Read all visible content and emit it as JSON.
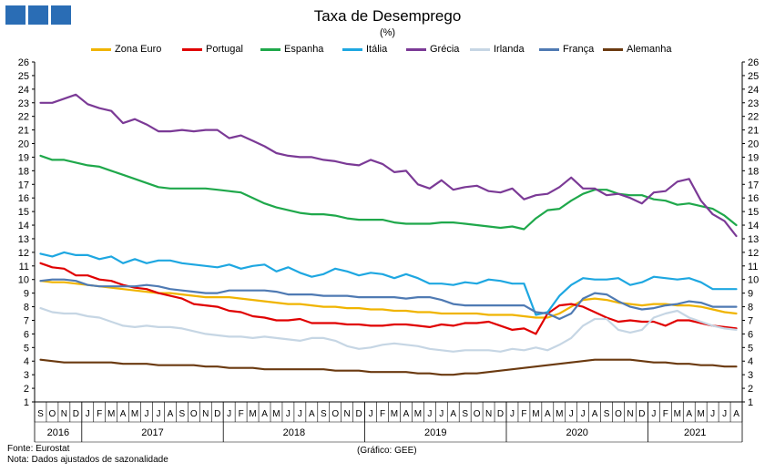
{
  "header": {
    "title": "Taxa de Desemprego",
    "subtitle": "(%)"
  },
  "logo": {
    "colors": [
      "#2a6db5",
      "#2a6db5",
      "#2a6db5"
    ]
  },
  "footer": {
    "source": "Fonte: Eurostat",
    "note": "Nota: Dados ajustados de sazonalidade",
    "credit": "(Gráfico: GEE)"
  },
  "chart_data": {
    "type": "line",
    "title": "Taxa de Desemprego",
    "subtitle": "(%)",
    "ylim": [
      1,
      26
    ],
    "yticks": [
      1,
      2,
      3,
      4,
      5,
      6,
      7,
      8,
      9,
      10,
      11,
      12,
      13,
      14,
      15,
      16,
      17,
      18,
      19,
      20,
      21,
      22,
      23,
      24,
      25,
      26
    ],
    "y_axis_both_sides": true,
    "grid": false,
    "legend_position": "top",
    "x": [
      "S",
      "O",
      "N",
      "D",
      "J",
      "F",
      "M",
      "A",
      "M",
      "J",
      "J",
      "A",
      "S",
      "O",
      "N",
      "D",
      "J",
      "F",
      "M",
      "A",
      "M",
      "J",
      "J",
      "A",
      "S",
      "O",
      "N",
      "D",
      "J",
      "F",
      "M",
      "A",
      "M",
      "J",
      "J",
      "A",
      "S",
      "O",
      "N",
      "D",
      "J",
      "F",
      "M",
      "A",
      "M",
      "J",
      "J",
      "A",
      "S",
      "O",
      "N",
      "D",
      "J",
      "F",
      "M",
      "A",
      "M",
      "J",
      "J",
      "A"
    ],
    "years": [
      {
        "label": "2016",
        "start": 0,
        "end": 3
      },
      {
        "label": "2017",
        "start": 4,
        "end": 15
      },
      {
        "label": "2018",
        "start": 16,
        "end": 27
      },
      {
        "label": "2019",
        "start": 28,
        "end": 39
      },
      {
        "label": "2020",
        "start": 40,
        "end": 51
      },
      {
        "label": "2021",
        "start": 52,
        "end": 59
      }
    ],
    "series": [
      {
        "name": "Zona Euro",
        "color": "#f0b400",
        "values": [
          9.9,
          9.8,
          9.8,
          9.7,
          9.6,
          9.5,
          9.4,
          9.3,
          9.2,
          9.1,
          9.0,
          9.0,
          8.9,
          8.8,
          8.7,
          8.7,
          8.7,
          8.6,
          8.5,
          8.4,
          8.3,
          8.2,
          8.2,
          8.1,
          8.0,
          8.0,
          7.9,
          7.9,
          7.8,
          7.8,
          7.7,
          7.7,
          7.6,
          7.6,
          7.5,
          7.5,
          7.5,
          7.5,
          7.4,
          7.4,
          7.4,
          7.3,
          7.2,
          7.2,
          7.5,
          8.0,
          8.5,
          8.6,
          8.5,
          8.3,
          8.2,
          8.1,
          8.2,
          8.2,
          8.1,
          8.1,
          8.0,
          7.8,
          7.6,
          7.5
        ]
      },
      {
        "name": "Portugal",
        "color": "#e00000",
        "values": [
          11.2,
          10.9,
          10.8,
          10.3,
          10.3,
          10.0,
          9.9,
          9.6,
          9.4,
          9.3,
          9.0,
          8.8,
          8.6,
          8.2,
          8.1,
          8.0,
          7.7,
          7.6,
          7.3,
          7.2,
          7.0,
          7.0,
          7.1,
          6.8,
          6.8,
          6.8,
          6.7,
          6.7,
          6.6,
          6.6,
          6.7,
          6.7,
          6.6,
          6.5,
          6.7,
          6.6,
          6.8,
          6.8,
          6.9,
          6.6,
          6.3,
          6.4,
          6.0,
          7.5,
          8.1,
          8.2,
          8.0,
          7.6,
          7.2,
          6.9,
          7.0,
          6.9,
          6.9,
          6.6,
          7.0,
          7.0,
          6.8,
          6.6,
          6.5,
          6.4
        ]
      },
      {
        "name": "Espanha",
        "color": "#1fa84b",
        "values": [
          19.1,
          18.8,
          18.8,
          18.6,
          18.4,
          18.3,
          18.0,
          17.7,
          17.4,
          17.1,
          16.8,
          16.7,
          16.7,
          16.7,
          16.7,
          16.6,
          16.5,
          16.4,
          16.0,
          15.6,
          15.3,
          15.1,
          14.9,
          14.8,
          14.8,
          14.7,
          14.5,
          14.4,
          14.4,
          14.4,
          14.2,
          14.1,
          14.1,
          14.1,
          14.2,
          14.2,
          14.1,
          14.0,
          13.9,
          13.8,
          13.9,
          13.7,
          14.5,
          15.1,
          15.2,
          15.8,
          16.3,
          16.6,
          16.6,
          16.3,
          16.2,
          16.2,
          15.9,
          15.8,
          15.5,
          15.6,
          15.4,
          15.2,
          14.7,
          14.0
        ]
      },
      {
        "name": "Itália",
        "color": "#1ea7e1",
        "values": [
          11.9,
          11.7,
          12.0,
          11.8,
          11.8,
          11.5,
          11.7,
          11.2,
          11.5,
          11.2,
          11.4,
          11.4,
          11.2,
          11.1,
          11.0,
          10.9,
          11.1,
          10.8,
          11.0,
          11.1,
          10.6,
          10.9,
          10.5,
          10.2,
          10.4,
          10.8,
          10.6,
          10.3,
          10.5,
          10.4,
          10.1,
          10.4,
          10.1,
          9.7,
          9.7,
          9.6,
          9.8,
          9.7,
          10.0,
          9.9,
          9.7,
          9.7,
          7.4,
          7.6,
          8.8,
          9.6,
          10.1,
          10.0,
          10.0,
          10.1,
          9.6,
          9.8,
          10.2,
          10.1,
          10.0,
          10.1,
          9.8,
          9.3,
          9.3,
          9.3
        ]
      },
      {
        "name": "Grécia",
        "color": "#7b3a96",
        "values": [
          23.0,
          23.0,
          23.3,
          23.6,
          22.9,
          22.6,
          22.4,
          21.5,
          21.8,
          21.4,
          20.9,
          20.9,
          21.0,
          20.9,
          21.0,
          21.0,
          20.4,
          20.6,
          20.2,
          19.8,
          19.3,
          19.1,
          19.0,
          19.0,
          18.8,
          18.7,
          18.5,
          18.4,
          18.8,
          18.5,
          17.9,
          18.0,
          17.0,
          16.7,
          17.3,
          16.6,
          16.8,
          16.9,
          16.5,
          16.4,
          16.7,
          15.9,
          16.2,
          16.3,
          16.8,
          17.5,
          16.7,
          16.7,
          16.2,
          16.3,
          16.0,
          15.6,
          16.4,
          16.5,
          17.2,
          17.4,
          15.8,
          14.8,
          14.3,
          13.2
        ]
      },
      {
        "name": "Irlanda",
        "color": "#c6d6e4",
        "values": [
          7.9,
          7.6,
          7.5,
          7.5,
          7.3,
          7.2,
          6.9,
          6.6,
          6.5,
          6.6,
          6.5,
          6.5,
          6.4,
          6.2,
          6.0,
          5.9,
          5.8,
          5.8,
          5.7,
          5.8,
          5.7,
          5.6,
          5.5,
          5.7,
          5.7,
          5.5,
          5.1,
          4.9,
          5.0,
          5.2,
          5.3,
          5.2,
          5.1,
          4.9,
          4.8,
          4.7,
          4.8,
          4.8,
          4.8,
          4.7,
          4.9,
          4.8,
          5.0,
          4.8,
          5.2,
          5.7,
          6.6,
          7.1,
          7.1,
          6.3,
          6.1,
          6.3,
          7.2,
          7.5,
          7.7,
          7.2,
          6.9,
          6.6,
          6.4,
          6.3
        ]
      },
      {
        "name": "França",
        "color": "#4f7ab3",
        "values": [
          9.9,
          10.0,
          10.0,
          9.9,
          9.6,
          9.5,
          9.5,
          9.5,
          9.5,
          9.6,
          9.5,
          9.3,
          9.2,
          9.1,
          9.0,
          9.0,
          9.2,
          9.2,
          9.2,
          9.2,
          9.1,
          8.9,
          8.9,
          8.9,
          8.8,
          8.8,
          8.8,
          8.7,
          8.7,
          8.7,
          8.7,
          8.6,
          8.7,
          8.7,
          8.5,
          8.2,
          8.1,
          8.1,
          8.1,
          8.1,
          8.1,
          8.1,
          7.6,
          7.5,
          7.1,
          7.5,
          8.6,
          9.0,
          8.9,
          8.4,
          8.0,
          7.8,
          7.9,
          8.1,
          8.2,
          8.4,
          8.3,
          8.0,
          8.0,
          8.0
        ]
      },
      {
        "name": "Alemanha",
        "color": "#6b3a10",
        "values": [
          4.1,
          4.0,
          3.9,
          3.9,
          3.9,
          3.9,
          3.9,
          3.8,
          3.8,
          3.8,
          3.7,
          3.7,
          3.7,
          3.7,
          3.6,
          3.6,
          3.5,
          3.5,
          3.5,
          3.4,
          3.4,
          3.4,
          3.4,
          3.4,
          3.4,
          3.3,
          3.3,
          3.3,
          3.2,
          3.2,
          3.2,
          3.2,
          3.1,
          3.1,
          3.0,
          3.0,
          3.1,
          3.1,
          3.2,
          3.3,
          3.4,
          3.5,
          3.6,
          3.7,
          3.8,
          3.9,
          4.0,
          4.1,
          4.1,
          4.1,
          4.1,
          4.0,
          3.9,
          3.9,
          3.8,
          3.8,
          3.7,
          3.7,
          3.6,
          3.6
        ]
      }
    ]
  }
}
